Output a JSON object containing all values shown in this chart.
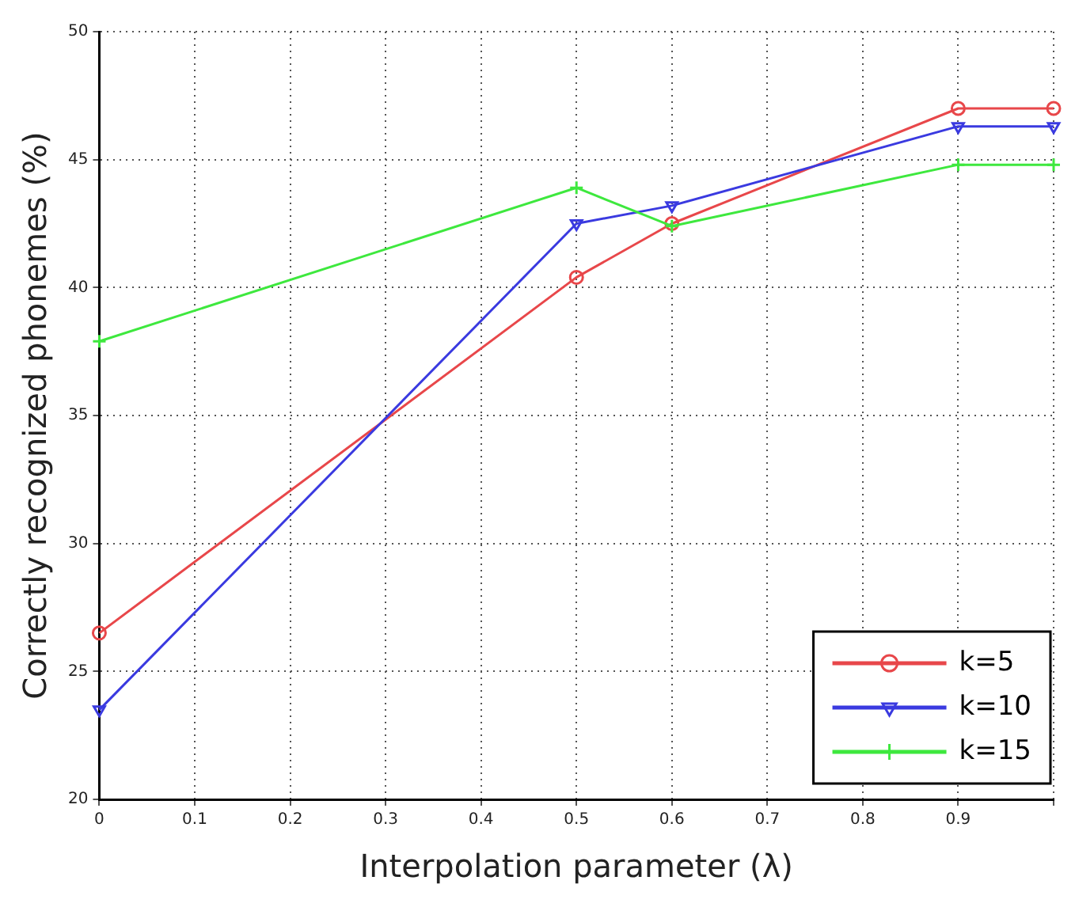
{
  "chart_data": {
    "type": "line",
    "xlabel": "Interpolation parameter (λ)",
    "ylabel": "Correctly recognized phonemes (%)",
    "xlim": [
      0,
      1
    ],
    "xticks": [
      0,
      0.1,
      0.2,
      0.3,
      0.4,
      0.5,
      0.6,
      0.7,
      0.8,
      0.9,
      {
        "value": 1,
        "label": null
      }
    ],
    "ylim": [
      20,
      50
    ],
    "yticks": [
      20,
      25,
      30,
      35,
      40,
      45,
      50
    ],
    "x": [
      0,
      0.5,
      0.6,
      0.9,
      1
    ],
    "series": [
      {
        "name": "k=5",
        "color": "#e8474a",
        "marker": "circle",
        "values": [
          26.5,
          40.4,
          42.5,
          47,
          47
        ]
      },
      {
        "name": "k=10",
        "color": "#3a3ae0",
        "marker": "triangle",
        "values": [
          23.5,
          42.5,
          43.2,
          46.3,
          46.3
        ]
      },
      {
        "name": "k=15",
        "color": "#3ee83e",
        "marker": "cross",
        "values": [
          37.9,
          43.9,
          42.4,
          44.8,
          44.8
        ]
      }
    ],
    "grid": true,
    "line_style": "solid",
    "legend": "bottom right"
  }
}
